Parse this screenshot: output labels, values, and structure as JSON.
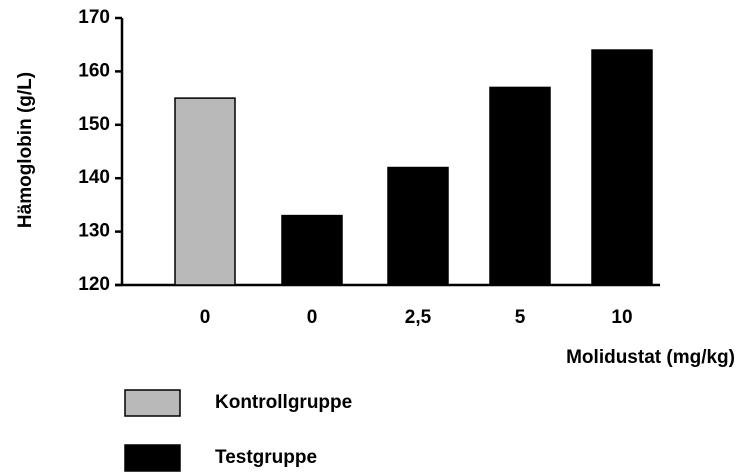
{
  "chart_data": {
    "type": "bar",
    "y_label": "Hämoglobin (g/L)",
    "x_label": "Molidustat (mg/kg)",
    "categories": [
      "0",
      "0",
      "2,5",
      "5",
      "10"
    ],
    "series": [
      {
        "name": "Kontrollgruppe",
        "color": "#b9b9b9",
        "values": [
          155,
          null,
          null,
          null,
          null
        ]
      },
      {
        "name": "Testgruppe",
        "color": "#000000",
        "values": [
          null,
          133,
          142,
          157,
          164
        ]
      }
    ],
    "ylim": [
      120,
      170
    ],
    "yticks": [
      120,
      130,
      140,
      150,
      160,
      170
    ]
  }
}
